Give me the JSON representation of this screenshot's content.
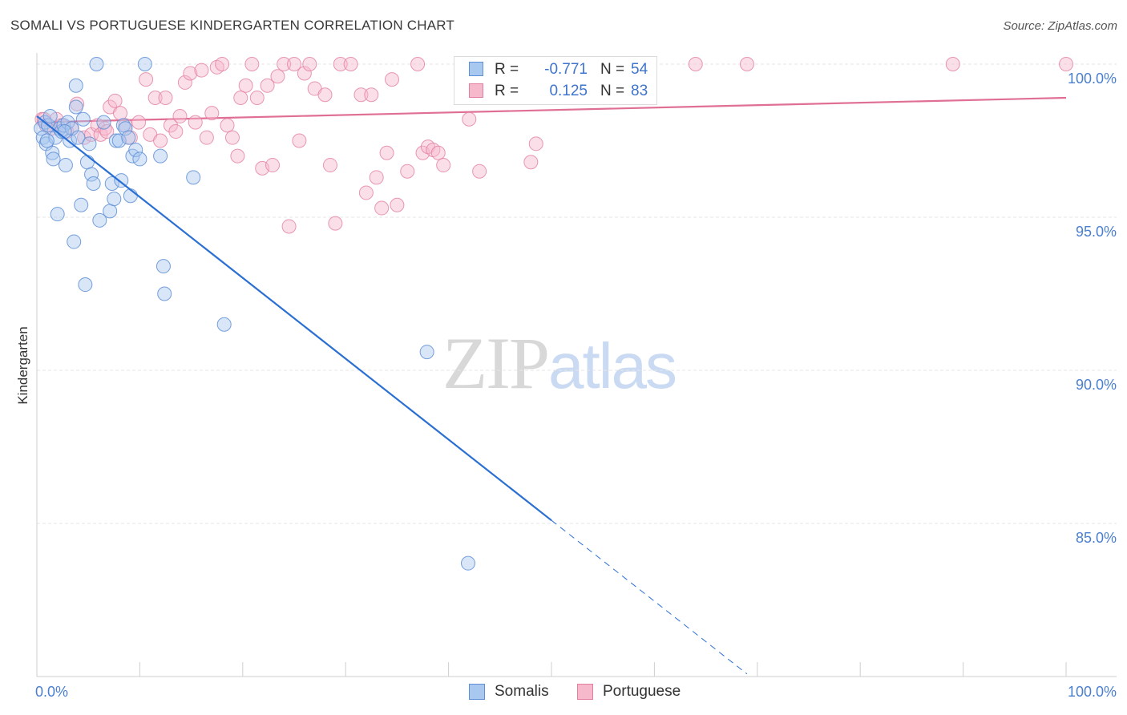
{
  "title": "SOMALI VS PORTUGUESE KINDERGARTEN CORRELATION CHART",
  "source": "Source: ZipAtlas.com",
  "watermark": {
    "zip": "ZIP",
    "atlas": "atlas"
  },
  "colors": {
    "somali_fill": "#a9c8f0",
    "somali_stroke": "#5f8fd6",
    "somali_line": "#2a6fd4",
    "portuguese_fill": "#f6b9cc",
    "portuguese_stroke": "#e27fa0",
    "portuguese_line": "#e06f94",
    "grid": "#e6e6e6",
    "tick_text": "#4a7fd0"
  },
  "legend": {
    "somali": {
      "r_label": "R =",
      "r_value": "-0.771",
      "n_label": "N =",
      "n_value": "54"
    },
    "portuguese": {
      "r_label": "R =",
      "r_value": "0.125",
      "n_label": "N =",
      "n_value": "83"
    }
  },
  "bottom_legend": {
    "somali": "Somalis",
    "portuguese": "Portuguese"
  },
  "chart_data": {
    "type": "scatter",
    "title": "SOMALI VS PORTUGUESE KINDERGARTEN CORRELATION CHART",
    "xlabel": "",
    "ylabel": "Kindergarten",
    "xlim": [
      0,
      100
    ],
    "ylim": [
      80.0,
      100.8
    ],
    "x_tick_labels": [
      "0.0%",
      "100.0%"
    ],
    "y_ticks": [
      {
        "value": 100,
        "label": "100.0%"
      },
      {
        "value": 95,
        "label": "95.0%"
      },
      {
        "value": 90,
        "label": "90.0%"
      },
      {
        "value": 85,
        "label": "85.0%"
      }
    ],
    "series": [
      {
        "name": "Somalis",
        "R": -0.771,
        "N": 54,
        "trend": {
          "x0": 0.0,
          "y0": 98.3,
          "x1": 50.0,
          "y1": 85.1,
          "dash_to_x": 69.0
        },
        "points": [
          [
            0.4,
            97.9
          ],
          [
            0.6,
            97.6
          ],
          [
            0.8,
            98.1
          ],
          [
            0.9,
            97.4
          ],
          [
            1.1,
            98.0
          ],
          [
            1.3,
            98.3
          ],
          [
            1.5,
            97.1
          ],
          [
            1.6,
            96.9
          ],
          [
            1.8,
            97.6
          ],
          [
            2.0,
            95.1
          ],
          [
            2.2,
            97.9
          ],
          [
            2.4,
            97.8
          ],
          [
            2.6,
            98.0
          ],
          [
            2.8,
            96.7
          ],
          [
            3.0,
            98.1
          ],
          [
            3.2,
            97.5
          ],
          [
            3.4,
            97.9
          ],
          [
            3.6,
            94.2
          ],
          [
            3.8,
            98.6
          ],
          [
            3.8,
            99.3
          ],
          [
            4.0,
            97.6
          ],
          [
            4.3,
            95.4
          ],
          [
            4.5,
            98.2
          ],
          [
            4.7,
            92.8
          ],
          [
            4.9,
            96.8
          ],
          [
            5.1,
            97.4
          ],
          [
            5.3,
            96.4
          ],
          [
            5.5,
            96.1
          ],
          [
            5.8,
            100.0
          ],
          [
            6.1,
            94.9
          ],
          [
            6.5,
            98.1
          ],
          [
            7.1,
            95.2
          ],
          [
            7.3,
            96.1
          ],
          [
            7.5,
            95.6
          ],
          [
            7.7,
            97.5
          ],
          [
            8.0,
            97.5
          ],
          [
            8.2,
            96.2
          ],
          [
            8.4,
            98.0
          ],
          [
            8.6,
            97.9
          ],
          [
            8.9,
            97.6
          ],
          [
            9.1,
            95.7
          ],
          [
            9.3,
            97.0
          ],
          [
            9.6,
            97.2
          ],
          [
            10.0,
            96.9
          ],
          [
            10.5,
            100.0
          ],
          [
            12.0,
            97.0
          ],
          [
            12.3,
            93.4
          ],
          [
            12.4,
            92.5
          ],
          [
            15.2,
            96.3
          ],
          [
            18.2,
            91.5
          ],
          [
            37.9,
            90.6
          ],
          [
            41.9,
            83.7
          ],
          [
            1.0,
            97.5
          ],
          [
            2.7,
            97.8
          ]
        ]
      },
      {
        "name": "Portuguese",
        "R": 0.125,
        "N": 83,
        "trend": {
          "x0": 0.0,
          "y0": 98.1,
          "x1": 100.0,
          "y1": 98.9
        },
        "points": [
          [
            0.5,
            98.2
          ],
          [
            0.9,
            98.0
          ],
          [
            1.4,
            97.9
          ],
          [
            1.9,
            98.2
          ],
          [
            2.4,
            98.0
          ],
          [
            2.9,
            97.8
          ],
          [
            3.4,
            97.9
          ],
          [
            3.9,
            98.7
          ],
          [
            4.6,
            97.6
          ],
          [
            5.3,
            97.7
          ],
          [
            5.9,
            98.0
          ],
          [
            6.2,
            97.7
          ],
          [
            6.6,
            97.9
          ],
          [
            7.1,
            98.6
          ],
          [
            7.6,
            98.8
          ],
          [
            8.1,
            98.4
          ],
          [
            8.6,
            98.0
          ],
          [
            9.1,
            97.6
          ],
          [
            9.9,
            98.1
          ],
          [
            10.6,
            99.5
          ],
          [
            11.0,
            97.7
          ],
          [
            11.5,
            98.9
          ],
          [
            12.0,
            97.5
          ],
          [
            12.5,
            98.9
          ],
          [
            13.0,
            98.0
          ],
          [
            13.5,
            97.8
          ],
          [
            13.9,
            98.3
          ],
          [
            14.4,
            99.4
          ],
          [
            14.9,
            99.7
          ],
          [
            15.4,
            98.1
          ],
          [
            16.0,
            99.8
          ],
          [
            16.5,
            97.6
          ],
          [
            17.0,
            98.4
          ],
          [
            17.5,
            99.9
          ],
          [
            18.0,
            100.0
          ],
          [
            18.5,
            98.0
          ],
          [
            19.0,
            97.6
          ],
          [
            19.5,
            97.0
          ],
          [
            19.8,
            98.9
          ],
          [
            20.3,
            99.3
          ],
          [
            20.9,
            100.0
          ],
          [
            21.4,
            98.9
          ],
          [
            21.9,
            96.6
          ],
          [
            22.4,
            99.3
          ],
          [
            22.9,
            96.7
          ],
          [
            23.4,
            99.6
          ],
          [
            24.0,
            100.0
          ],
          [
            24.5,
            94.7
          ],
          [
            25.0,
            100.0
          ],
          [
            25.5,
            97.5
          ],
          [
            26.0,
            99.7
          ],
          [
            26.5,
            100.0
          ],
          [
            27.0,
            99.2
          ],
          [
            28.0,
            99.0
          ],
          [
            28.5,
            96.7
          ],
          [
            29.0,
            94.8
          ],
          [
            29.5,
            100.0
          ],
          [
            30.5,
            100.0
          ],
          [
            31.5,
            99.0
          ],
          [
            32.0,
            95.8
          ],
          [
            32.5,
            99.0
          ],
          [
            33.0,
            96.3
          ],
          [
            33.5,
            95.3
          ],
          [
            34.0,
            97.1
          ],
          [
            34.5,
            99.5
          ],
          [
            35.0,
            95.4
          ],
          [
            36.0,
            96.5
          ],
          [
            37.0,
            100.0
          ],
          [
            37.5,
            97.1
          ],
          [
            38.0,
            97.3
          ],
          [
            38.5,
            97.2
          ],
          [
            39.0,
            97.1
          ],
          [
            39.5,
            96.7
          ],
          [
            42.0,
            98.2
          ],
          [
            43.0,
            96.5
          ],
          [
            48.0,
            96.8
          ],
          [
            48.5,
            97.4
          ],
          [
            64.0,
            100.0
          ],
          [
            69.0,
            100.0
          ],
          [
            89.0,
            100.0
          ],
          [
            100.0,
            100.0
          ],
          [
            0.7,
            98.2
          ],
          [
            6.8,
            97.8
          ]
        ]
      }
    ]
  }
}
